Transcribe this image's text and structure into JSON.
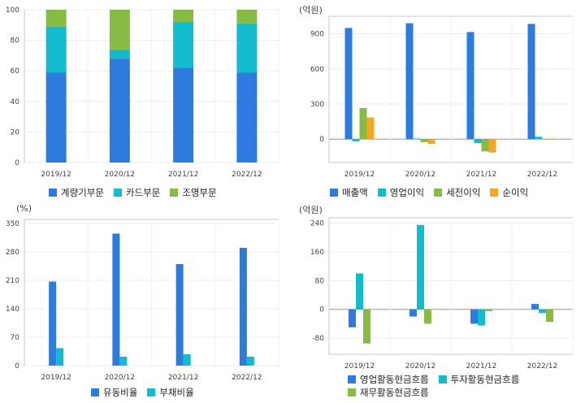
{
  "chart_data": [
    {
      "id": "c1",
      "type": "bar",
      "stacked": true,
      "unit": "",
      "categories": [
        "2019/12",
        "2020/12",
        "2021/12",
        "2022/12"
      ],
      "series": [
        {
          "name": "계량기부문",
          "color": "#2e7be0",
          "values": [
            59,
            68,
            62,
            59
          ]
        },
        {
          "name": "카드부문",
          "color": "#12bccc",
          "values": [
            30,
            6,
            30,
            32
          ]
        },
        {
          "name": "조명부문",
          "color": "#88bb44",
          "values": [
            11,
            26,
            8,
            9
          ]
        }
      ],
      "ylim": [
        0,
        100
      ],
      "yticks": [
        0,
        20,
        40,
        60,
        80,
        100
      ],
      "grid": true,
      "legend": "bottom"
    },
    {
      "id": "c2",
      "type": "bar",
      "stacked": false,
      "unit": "(억원)",
      "categories": [
        "2019/12",
        "2020/12",
        "2021/12",
        "2022/12"
      ],
      "series": [
        {
          "name": "매출액",
          "color": "#2e7be0",
          "values": [
            950,
            990,
            915,
            985
          ]
        },
        {
          "name": "영업이익",
          "color": "#12bccc",
          "values": [
            -20,
            5,
            -35,
            20
          ]
        },
        {
          "name": "세전이익",
          "color": "#88bb44",
          "values": [
            265,
            -25,
            -105,
            -5
          ]
        },
        {
          "name": "순이익",
          "color": "#f5a623",
          "values": [
            185,
            -40,
            -115,
            5
          ]
        }
      ],
      "ylim": [
        -200,
        1050
      ],
      "yticks": [
        0,
        300,
        600,
        900
      ],
      "grid": true,
      "legend": "bottom"
    },
    {
      "id": "c3",
      "type": "bar",
      "stacked": false,
      "unit": "(%)",
      "categories": [
        "2019/12",
        "2020/12",
        "2021/12",
        "2022/12"
      ],
      "series": [
        {
          "name": "유동비율",
          "color": "#2e7be0",
          "values": [
            207,
            325,
            250,
            290
          ]
        },
        {
          "name": "부채비율",
          "color": "#12bccc",
          "values": [
            43,
            22,
            28,
            22
          ]
        }
      ],
      "ylim": [
        0,
        360
      ],
      "yticks": [
        0,
        70,
        140,
        210,
        280,
        350
      ],
      "grid": true,
      "legend": "bottom"
    },
    {
      "id": "c4",
      "type": "bar",
      "stacked": false,
      "unit": "(억원)",
      "categories": [
        "2019/12",
        "2020/12",
        "2021/12",
        "2022/12"
      ],
      "series": [
        {
          "name": "영업활동현금흐름",
          "color": "#2e7be0",
          "values": [
            -50,
            -20,
            -40,
            15
          ]
        },
        {
          "name": "투자활동현금흐름",
          "color": "#12bccc",
          "values": [
            100,
            235,
            -45,
            -10
          ]
        },
        {
          "name": "재무활동현금흐름",
          "color": "#88bb44",
          "values": [
            -95,
            -40,
            -5,
            -35
          ]
        }
      ],
      "ylim": [
        -125,
        255
      ],
      "yticks": [
        -80,
        0,
        80,
        160,
        240
      ],
      "grid": true,
      "legend": "bottom"
    }
  ]
}
